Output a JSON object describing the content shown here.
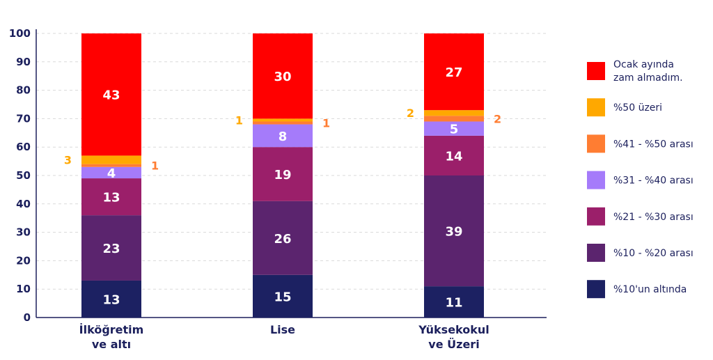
{
  "chart_data": {
    "type": "bar",
    "stacked": true,
    "title": "",
    "xlabel": "",
    "ylabel": "",
    "ylim": [
      0,
      100
    ],
    "yticks": [
      0,
      10,
      20,
      30,
      40,
      50,
      60,
      70,
      80,
      90,
      100
    ],
    "grid": true,
    "legend_position": "right",
    "categories": [
      [
        "İlköğretim",
        "ve altı"
      ],
      [
        "Lise"
      ],
      [
        "Yüksekokul",
        "ve Üzeri"
      ]
    ],
    "series": [
      {
        "name": "%10'un altında",
        "color": "#1c2162",
        "values": [
          13,
          15,
          11
        ]
      },
      {
        "name": "%10 - %20 arası",
        "color": "#5b246e",
        "values": [
          23,
          26,
          39
        ]
      },
      {
        "name": "%21 - %30 arası",
        "color": "#9b1f6a",
        "values": [
          13,
          19,
          14
        ]
      },
      {
        "name": "%31 - %40 arası",
        "color": "#a57bfa",
        "values": [
          4,
          8,
          5
        ]
      },
      {
        "name": "%41 - %50 arası",
        "color": "#ff7d32",
        "values": [
          1,
          1,
          2
        ]
      },
      {
        "name": "%50 üzeri",
        "color": "#ffa800",
        "values": [
          3,
          1,
          2
        ]
      },
      {
        "name": "Ocak ayında zam almadım.",
        "legend_lines": [
          "Ocak ayında",
          "zam almadım."
        ],
        "color": "#ff0000",
        "values": [
          43,
          30,
          27
        ]
      }
    ],
    "outside_label_colors": {
      "%50 üzeri": "#ffa800",
      "%41 - %50 arası": "#ff7d32"
    }
  }
}
